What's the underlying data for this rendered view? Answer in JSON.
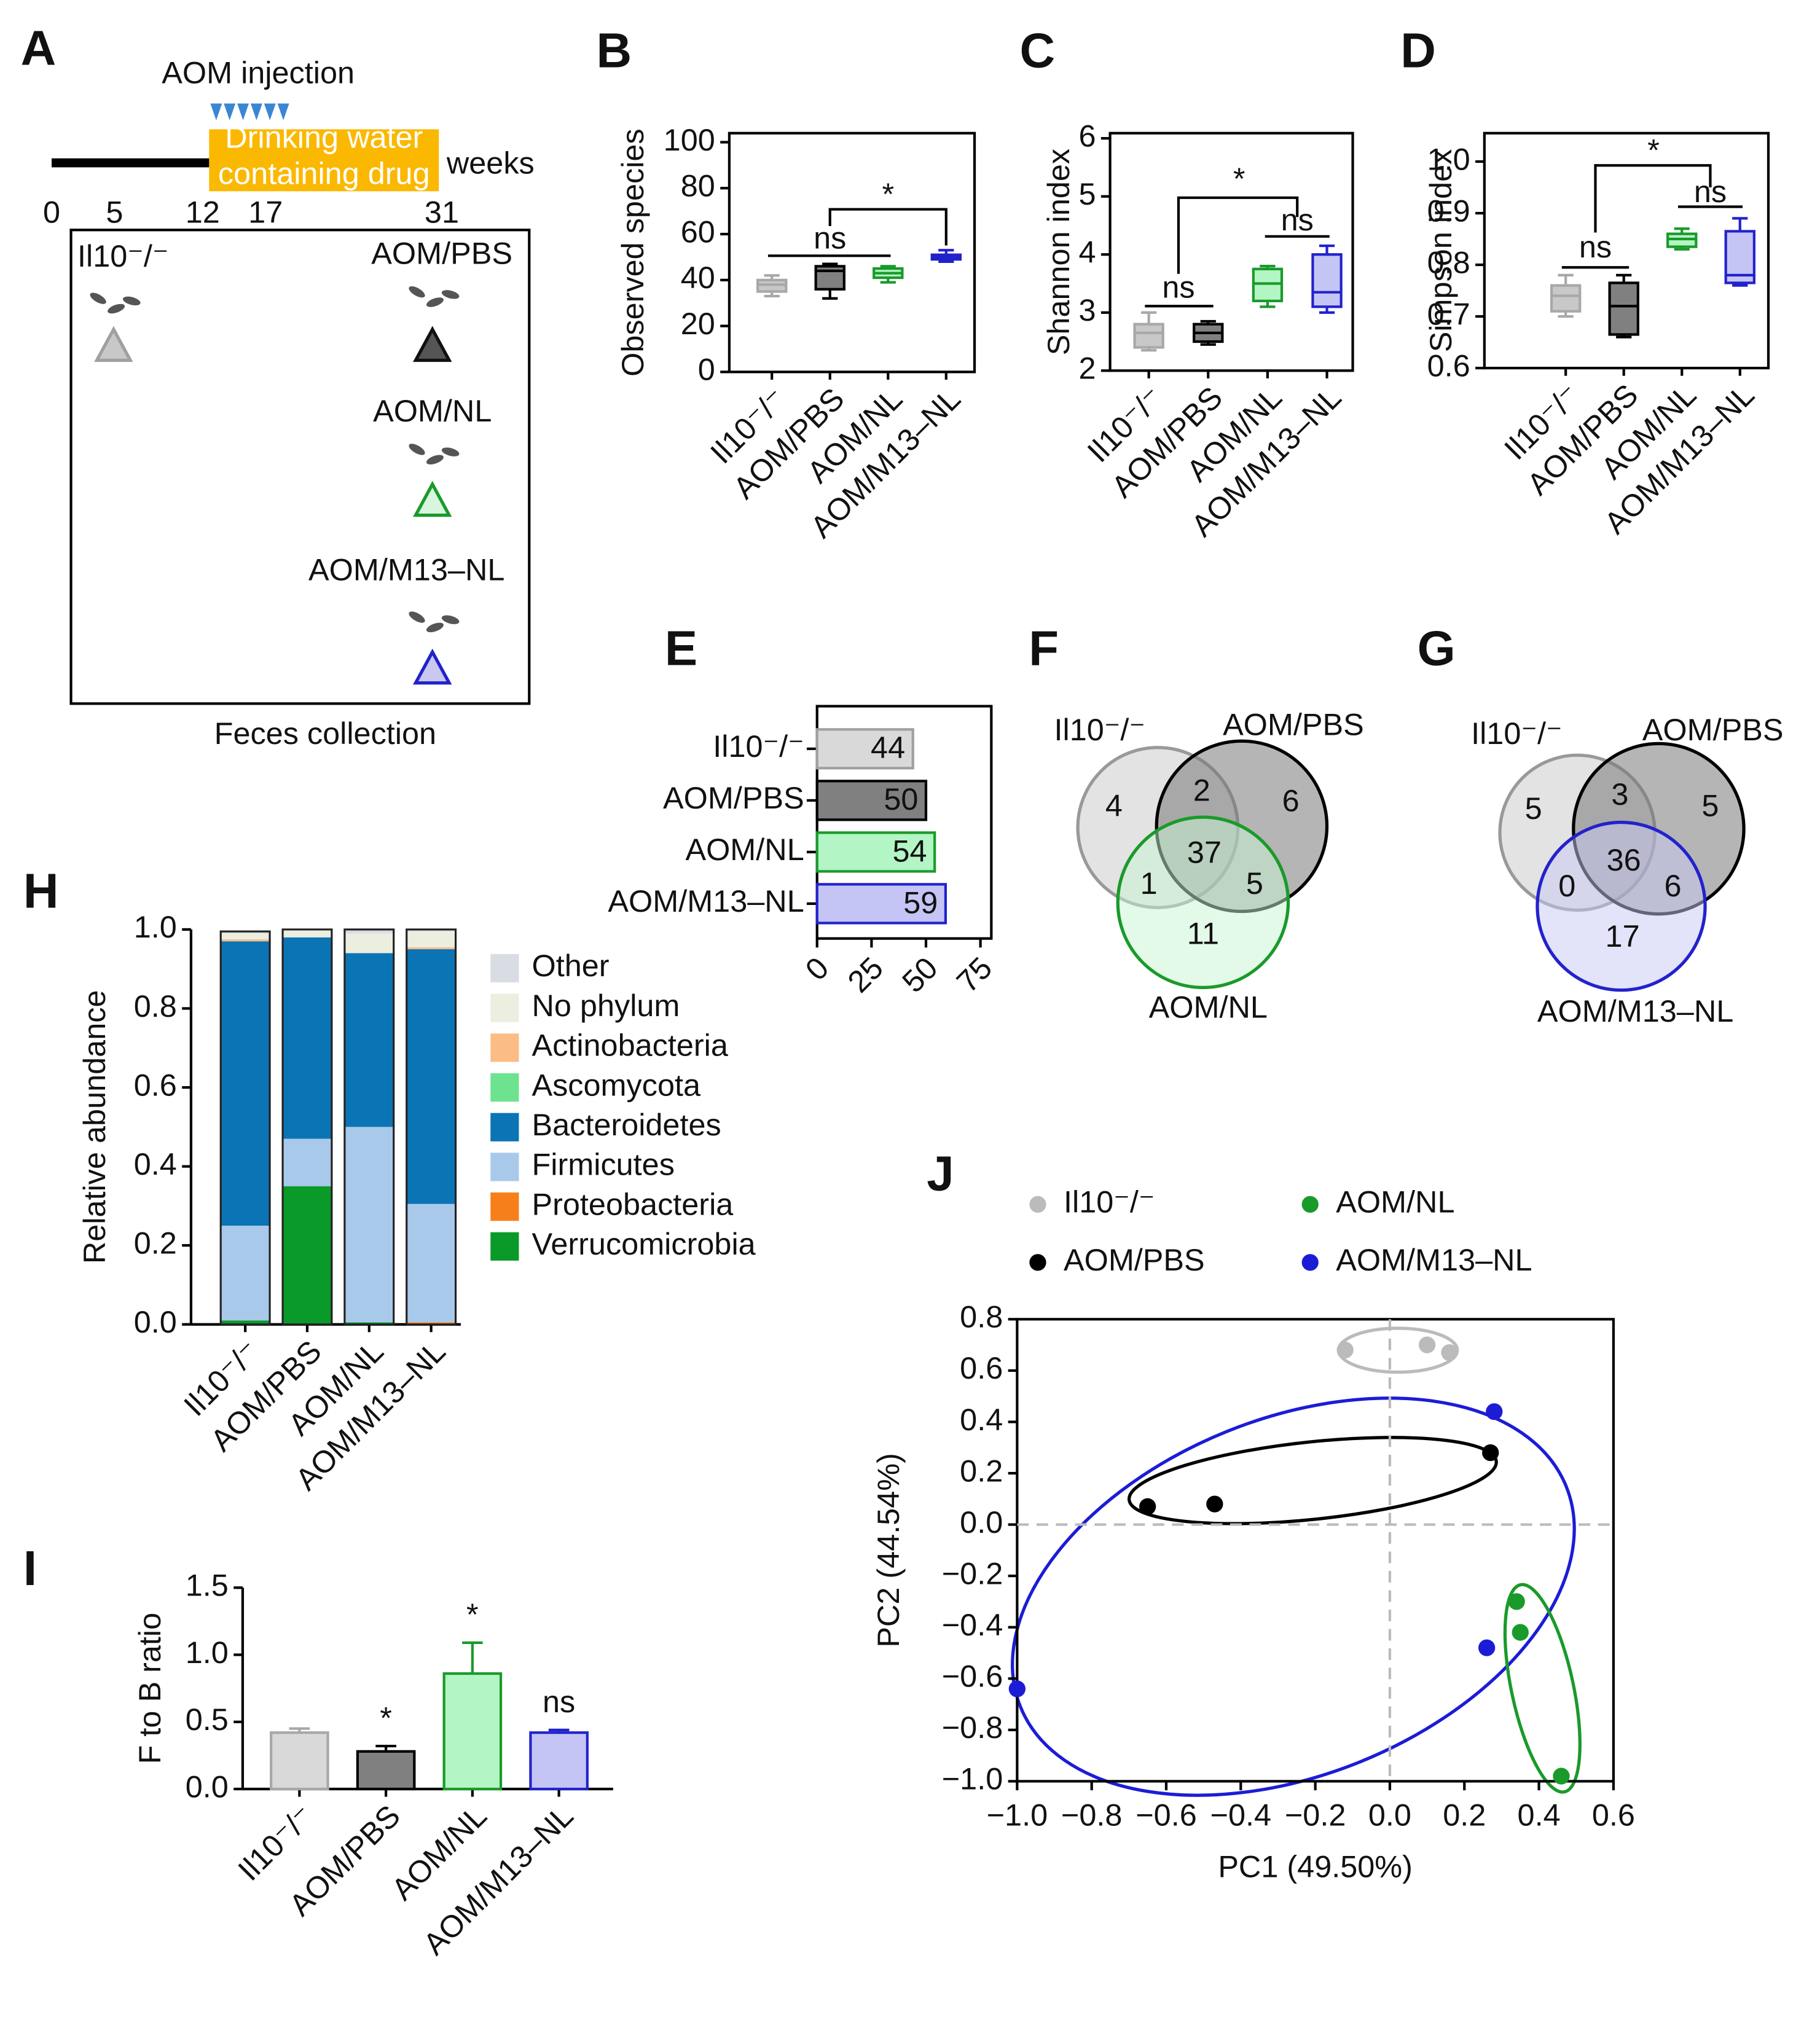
{
  "diagram": {
    "panel": "A",
    "injection_label": "AOM injection",
    "drug_label_1": "Drinking water",
    "drug_label_2": "containing drug",
    "unit": "weeks",
    "timeline_ticks": [
      0,
      5,
      12,
      17,
      31
    ],
    "groups": [
      "Il10⁻/⁻",
      "AOM/PBS",
      "AOM/NL",
      "AOM/M13–NL"
    ],
    "footer": "Feces collection"
  },
  "chart_data": [
    {
      "type": "box",
      "panel": "B",
      "ylabel": "Observed species",
      "categories": [
        "Il10⁻/⁻",
        "AOM/PBS",
        "AOM/NL",
        "AOM/M13–NL"
      ],
      "min": [
        33,
        32,
        39,
        48
      ],
      "q1": [
        35,
        36,
        41,
        49
      ],
      "median": [
        38,
        44,
        43,
        50
      ],
      "q3": [
        40,
        46,
        45,
        51
      ],
      "max": [
        42,
        47,
        46,
        53
      ],
      "colors": [
        "#c8c8c8",
        "#808080",
        "#b3f5c4",
        "#c5c5f5"
      ],
      "edge_colors": [
        "#a8a8a8",
        "#000000",
        "#1a9a2a",
        "#2222cc"
      ],
      "ylim": [
        0,
        100
      ],
      "yticks": [
        0,
        20,
        40,
        60,
        80,
        100
      ],
      "annotations": [
        "ns",
        "*"
      ]
    },
    {
      "type": "box",
      "panel": "C",
      "ylabel": "Shannon index",
      "categories": [
        "Il10⁻/⁻",
        "AOM/PBS",
        "AOM/NL",
        "AOM/M13–NL"
      ],
      "min": [
        2.35,
        2.45,
        3.1,
        3.0
      ],
      "q1": [
        2.4,
        2.5,
        3.2,
        3.1
      ],
      "median": [
        2.65,
        2.65,
        3.5,
        3.35
      ],
      "q3": [
        2.8,
        2.8,
        3.75,
        4.0
      ],
      "max": [
        3.0,
        2.85,
        3.8,
        4.15
      ],
      "colors": [
        "#c8c8c8",
        "#808080",
        "#b3f5c4",
        "#c5c5f5"
      ],
      "edge_colors": [
        "#a8a8a8",
        "#000000",
        "#1a9a2a",
        "#2222cc"
      ],
      "ylim": [
        2,
        6
      ],
      "yticks": [
        2,
        3,
        4,
        5,
        6
      ],
      "annotations": [
        "ns",
        "ns",
        "*"
      ]
    },
    {
      "type": "box",
      "panel": "D",
      "ylabel": "Simpson index",
      "categories": [
        "Il10⁻/⁻",
        "AOM/PBS",
        "AOM/NL",
        "AOM/M13–NL"
      ],
      "min": [
        0.7,
        0.66,
        0.83,
        0.76
      ],
      "q1": [
        0.71,
        0.665,
        0.835,
        0.765
      ],
      "median": [
        0.74,
        0.72,
        0.85,
        0.78
      ],
      "q3": [
        0.76,
        0.765,
        0.86,
        0.865
      ],
      "max": [
        0.78,
        0.78,
        0.87,
        0.89
      ],
      "colors": [
        "#c8c8c8",
        "#808080",
        "#b3f5c4",
        "#c5c5f5"
      ],
      "edge_colors": [
        "#a8a8a8",
        "#000000",
        "#1a9a2a",
        "#2222cc"
      ],
      "ylim": [
        0.6,
        1.05
      ],
      "yticks": [
        0.6,
        0.7,
        0.8,
        0.9,
        {
          "value": 1,
          "label": "1.0"
        }
      ],
      "annotations": [
        "ns",
        "ns",
        "*"
      ]
    },
    {
      "type": "bar",
      "panel": "E",
      "orientation": "horizontal",
      "categories": [
        "Il10⁻/⁻",
        "AOM/PBS",
        "AOM/NL",
        "AOM/M13–NL"
      ],
      "values": [
        44,
        50,
        54,
        59
      ],
      "colors": [
        "#d9d9d9",
        "#808080",
        "#b3f5c4",
        "#c5c5f5"
      ],
      "edge_colors": [
        "#a0a0a0",
        "#000000",
        "#1a9a2a",
        "#2222cc"
      ],
      "xlim": [
        0,
        80
      ],
      "xticks": [
        0,
        25,
        50,
        75
      ]
    },
    {
      "type": "venn",
      "panel": "F",
      "sets": [
        "Il10⁻/⁻",
        "AOM/PBS",
        "AOM/NL"
      ],
      "colors": [
        "rgba(200,200,200,0.5)",
        "rgba(120,120,120,0.55)",
        "rgba(200,245,210,0.5)"
      ],
      "edge_colors": [
        "#999999",
        "#000000",
        "#1a9a2a"
      ],
      "values": [
        4,
        6,
        11,
        2,
        1,
        5,
        37
      ]
    },
    {
      "type": "venn",
      "panel": "G",
      "sets": [
        "Il10⁻/⁻",
        "AOM/PBS",
        "AOM/M13–NL"
      ],
      "colors": [
        "rgba(200,200,200,0.5)",
        "rgba(120,120,120,0.55)",
        "rgba(200,200,245,0.5)"
      ],
      "edge_colors": [
        "#999999",
        "#000000",
        "#2222cc"
      ],
      "values": [
        5,
        5,
        17,
        3,
        0,
        6,
        36
      ]
    },
    {
      "type": "bar",
      "panel": "H",
      "stacked": true,
      "ylabel": "Relative abundance",
      "categories": [
        "Il10⁻/⁻",
        "AOM/PBS",
        "AOM/NL",
        "AOM/M13–NL"
      ],
      "series": [
        {
          "name": "Other",
          "color": "#d9dde3",
          "values": [
            0.005,
            0,
            0.01,
            0.005
          ]
        },
        {
          "name": "No phylum",
          "color": "#eceee0",
          "values": [
            0.015,
            0.02,
            0.05,
            0.04
          ]
        },
        {
          "name": "Actinobacteria",
          "color": "#fbbd85",
          "values": [
            0.005,
            0,
            0,
            0.005
          ]
        },
        {
          "name": "Ascomycota",
          "color": "#6de38f",
          "values": [
            0,
            0,
            0,
            0
          ]
        },
        {
          "name": "Bacteroidetes",
          "color": "#0b74b5",
          "values": [
            0.72,
            0.51,
            0.44,
            0.645
          ]
        },
        {
          "name": "Firmicutes",
          "color": "#a9c9eb",
          "values": [
            0.24,
            0.12,
            0.495,
            0.3
          ]
        },
        {
          "name": "Proteobacteria",
          "color": "#f77f1b",
          "values": [
            0,
            0,
            0,
            0.005
          ]
        },
        {
          "name": "Verrucomicrobia",
          "color": "#0a9a2a",
          "values": [
            0.01,
            0.35,
            0.005,
            0
          ]
        }
      ],
      "ylim": [
        0,
        1
      ],
      "yticks": [
        {
          "value": 0,
          "label": "0.0"
        },
        0.2,
        0.4,
        0.6,
        0.8,
        {
          "value": 1,
          "label": "1.0"
        }
      ]
    },
    {
      "type": "bar",
      "panel": "I",
      "ylabel": "F to B ratio",
      "categories": [
        "Il10⁻/⁻",
        "AOM/PBS",
        "AOM/NL",
        "AOM/M13–NL"
      ],
      "values": [
        0.42,
        0.28,
        0.86,
        0.42
      ],
      "errors": [
        0.03,
        0.04,
        0.23,
        0.02
      ],
      "annotations": [
        null,
        "*",
        "*",
        "ns"
      ],
      "colors": [
        "#d9d9d9",
        "#808080",
        "#b3f5c4",
        "#c5c5f5"
      ],
      "edge_colors": [
        "#a8a8a8",
        "#000000",
        "#1a9a2a",
        "#2222cc"
      ],
      "ylim": [
        0,
        1.5
      ],
      "yticks": [
        {
          "value": 0,
          "label": "0.0"
        },
        0.5,
        {
          "value": 1,
          "label": "1.0"
        },
        1.5
      ]
    },
    {
      "type": "scatter",
      "panel": "J",
      "xlabel": "PC1 (49.50%)",
      "ylabel": "PC2 (44.54%)",
      "series": [
        {
          "name": "Il10⁻/⁻",
          "color": "#bbbbbb",
          "x": [
            -0.12,
            0.1,
            0.16
          ],
          "y": [
            0.68,
            0.7,
            0.67
          ]
        },
        {
          "name": "AOM/PBS",
          "color": "#000000",
          "x": [
            -0.65,
            -0.47,
            0.27
          ],
          "y": [
            0.07,
            0.08,
            0.28
          ]
        },
        {
          "name": "AOM/NL",
          "color": "#1a9a2a",
          "x": [
            0.34,
            0.35,
            0.46
          ],
          "y": [
            -0.3,
            -0.42,
            -0.98
          ]
        },
        {
          "name": "AOM/M13–NL",
          "color": "#1c1cd6",
          "x": [
            0.28,
            0.26,
            -1.0
          ],
          "y": [
            0.44,
            -0.48,
            -0.64
          ]
        }
      ],
      "xlim": [
        -1,
        0.6
      ],
      "ylim": [
        -1,
        0.8
      ],
      "xticks": [
        {
          "value": -1,
          "label": "−1.0"
        },
        {
          "value": -0.8,
          "label": "−0.8"
        },
        {
          "value": -0.6,
          "label": "−0.6"
        },
        {
          "value": -0.4,
          "label": "−0.4"
        },
        {
          "value": -0.2,
          "label": "−0.2"
        },
        {
          "value": 0,
          "label": "0.0"
        },
        0.2,
        0.4,
        0.6
      ],
      "yticks": [
        {
          "value": -1,
          "label": "−1.0"
        },
        {
          "value": -0.8,
          "label": "−0.8"
        },
        {
          "value": -0.6,
          "label": "−0.6"
        },
        {
          "value": -0.4,
          "label": "−0.4"
        },
        {
          "value": -0.2,
          "label": "−0.2"
        },
        {
          "value": 0,
          "label": "0.0"
        },
        0.2,
        0.4,
        0.6,
        0.8
      ]
    }
  ]
}
